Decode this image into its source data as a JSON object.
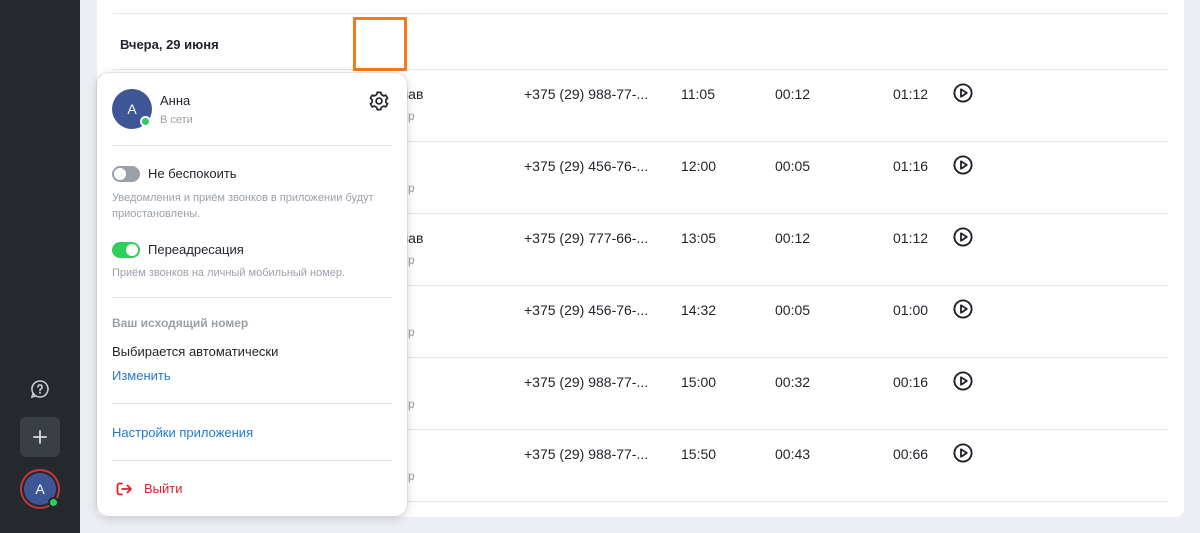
{
  "sidebar": {
    "help_icon": "help-circle-icon",
    "add_icon": "plus-icon",
    "avatar_initial": "А",
    "status": "online"
  },
  "call_log": {
    "date_group": "Вчера, 29 июня",
    "rows": [
      {
        "name": "лав",
        "sub": "р",
        "phone": "+375 (29) 988-77-...",
        "time": "11:05",
        "wait": "00:12",
        "duration": "01:12"
      },
      {
        "name": "",
        "sub": "р",
        "phone": "+375 (29) 456-76-...",
        "time": "12:00",
        "wait": "00:05",
        "duration": "01:16"
      },
      {
        "name": "лав",
        "sub": "р",
        "phone": "+375 (29) 777-66-...",
        "time": "13:05",
        "wait": "00:12",
        "duration": "01:12"
      },
      {
        "name": "",
        "sub": "р",
        "phone": "+375 (29) 456-76-...",
        "time": "14:32",
        "wait": "00:05",
        "duration": "01:00"
      },
      {
        "name": "",
        "sub": "р",
        "phone": "+375 (29) 988-77-...",
        "time": "15:00",
        "wait": "00:32",
        "duration": "00:16"
      },
      {
        "name": "",
        "sub": "р",
        "phone": "+375 (29) 988-77-...",
        "time": "15:50",
        "wait": "00:43",
        "duration": "00:66"
      }
    ]
  },
  "popup": {
    "avatar_initial": "А",
    "user_name": "Анна",
    "user_status": "В сети",
    "dnd": {
      "label": "Не беспокоить",
      "enabled": false,
      "description": "Уведомления и приём звонков в приложении будут приостановлены."
    },
    "forwarding": {
      "label": "Переадресация",
      "enabled": true,
      "description": "Приём звонков на личный мобильный номер."
    },
    "outgoing_number": {
      "heading": "Ваш исходящий номер",
      "value": "Выбирается автоматически",
      "change_link": "Изменить"
    },
    "app_settings_link": "Настройки приложения",
    "logout_label": "Выйти"
  },
  "colors": {
    "accent_blue": "#1f7bd6",
    "online_green": "#2fcf5e",
    "danger_red": "#d8232a",
    "highlight_orange": "#f07c1d",
    "sidebar_bg": "#25282d"
  }
}
